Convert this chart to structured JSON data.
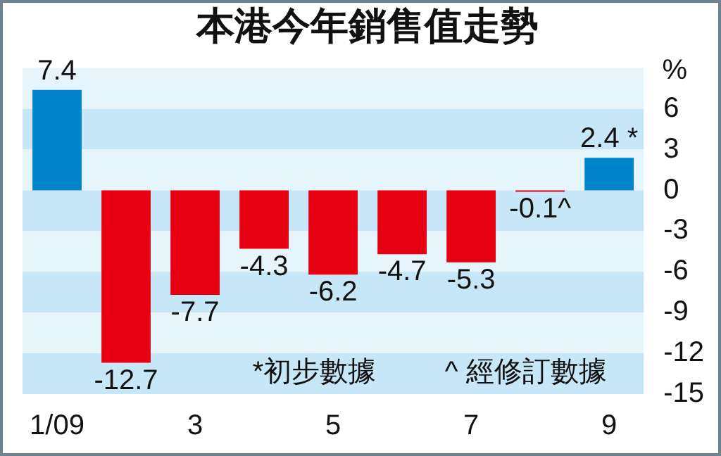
{
  "chart_data": {
    "type": "bar",
    "title": "本港今年銷售值走勢",
    "ylabel": "%",
    "categories": [
      "1/09",
      null,
      "3",
      null,
      "5",
      null,
      "7",
      null,
      "9"
    ],
    "values": [
      7.4,
      -12.7,
      -7.7,
      -4.3,
      -6.2,
      -4.7,
      -5.3,
      -0.1,
      2.4
    ],
    "colors": [
      "#0085cc",
      "#e60012",
      "#e60012",
      "#e60012",
      "#e60012",
      "#e60012",
      "#e60012",
      "#e60012",
      "#0085cc"
    ],
    "value_labels": [
      "7.4",
      "-12.7",
      "-7.7",
      "-4.3",
      "-6.2",
      "-4.7",
      "-5.3",
      "-0.1^",
      "2.4 *"
    ],
    "ylim": [
      -15,
      9
    ],
    "yticks": [
      6,
      3,
      0,
      -3,
      -6,
      -9,
      -12,
      -15
    ],
    "bands": [
      {
        "axis": "y",
        "from": 6,
        "to": 9,
        "color": "#e6f4fb"
      },
      {
        "axis": "y",
        "from": 3,
        "to": 6,
        "color": "#c7e6f7"
      },
      {
        "axis": "y",
        "from": 0,
        "to": 3,
        "color": "#e6f4fb"
      },
      {
        "axis": "y",
        "from": -3,
        "to": 0,
        "color": "#c7e6f7"
      },
      {
        "axis": "y",
        "from": -6,
        "to": -3,
        "color": "#e6f4fb"
      },
      {
        "axis": "y",
        "from": -9,
        "to": -6,
        "color": "#c7e6f7"
      },
      {
        "axis": "y",
        "from": -12,
        "to": -9,
        "color": "#e6f4fb"
      },
      {
        "axis": "y",
        "from": -15,
        "to": -12,
        "color": "#c7e6f7"
      }
    ],
    "annotations": [
      "*初步數據",
      "^ 經修訂數據"
    ]
  }
}
